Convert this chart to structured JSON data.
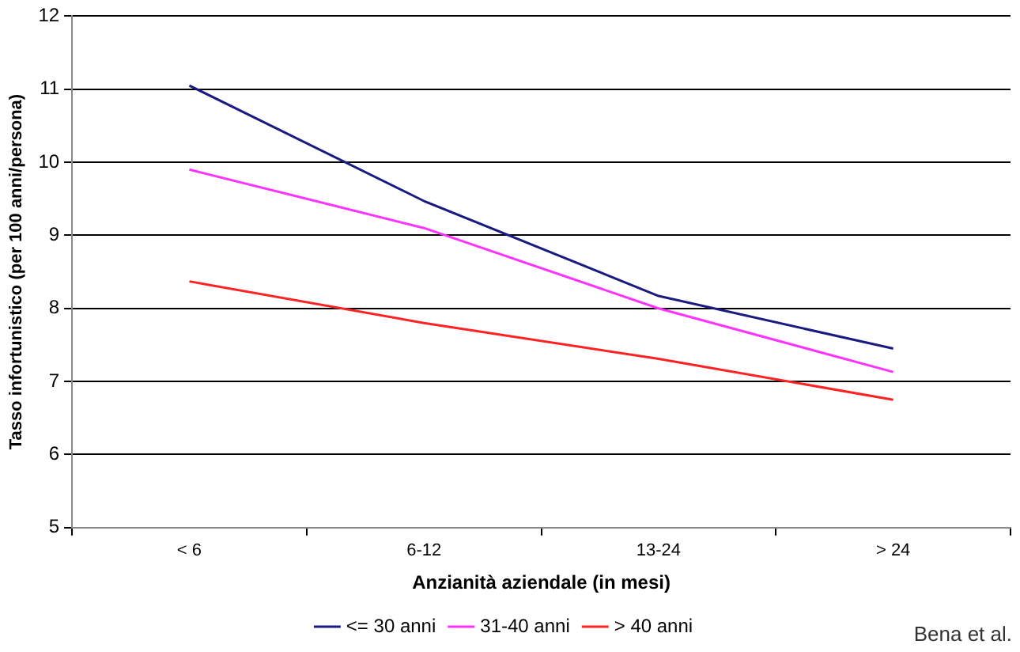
{
  "chart_data": {
    "type": "line",
    "xlabel": "Anzianità aziendale (in mesi)",
    "ylabel": "Tasso infortunistico (per 100 anni/persona)",
    "categories": [
      "< 6",
      "6-12",
      "13-24",
      "> 24"
    ],
    "series": [
      {
        "name": "<= 30 anni",
        "color": "#1a1a80",
        "values": [
          11.05,
          9.47,
          8.17,
          7.45
        ]
      },
      {
        "name": "31-40 anni",
        "color": "#ff33ff",
        "values": [
          9.9,
          9.1,
          8.0,
          7.13
        ]
      },
      {
        "name": "> 40 anni",
        "color": "#ff2222",
        "values": [
          8.37,
          7.8,
          7.31,
          6.75
        ]
      }
    ],
    "ylim": [
      5,
      12
    ],
    "yticks": [
      5,
      6,
      7,
      8,
      9,
      10,
      11,
      12
    ],
    "grid": "y",
    "legend": "bottom",
    "marker": "none",
    "line_style": "solid",
    "annotations": [
      "Bena et al."
    ]
  }
}
